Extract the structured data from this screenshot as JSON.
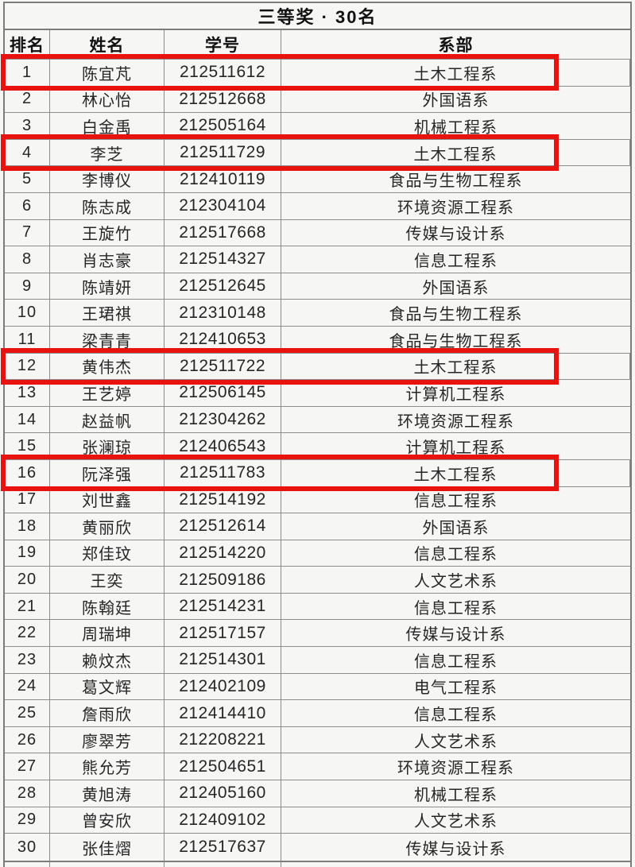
{
  "colors": {
    "highlight_border": "#e8130f"
  },
  "table": {
    "title": "三等奖 · 30名",
    "columns": [
      "排名",
      "姓名",
      "学号",
      "系部"
    ],
    "highlighted_ranks": [
      1,
      4,
      12,
      16
    ],
    "rows": [
      {
        "rank": "1",
        "name": "陈宜芃",
        "student_id": "212511612",
        "department": "土木工程系",
        "highlighted": true
      },
      {
        "rank": "2",
        "name": "林心怡",
        "student_id": "212512668",
        "department": "外国语系",
        "highlighted": false
      },
      {
        "rank": "3",
        "name": "白金禹",
        "student_id": "212505164",
        "department": "机械工程系",
        "highlighted": false
      },
      {
        "rank": "4",
        "name": "李芝",
        "student_id": "212511729",
        "department": "土木工程系",
        "highlighted": true
      },
      {
        "rank": "5",
        "name": "李博仪",
        "student_id": "212410119",
        "department": "食品与生物工程系",
        "highlighted": false
      },
      {
        "rank": "6",
        "name": "陈志成",
        "student_id": "212304104",
        "department": "环境资源工程系",
        "highlighted": false
      },
      {
        "rank": "7",
        "name": "王旋竹",
        "student_id": "212517668",
        "department": "传媒与设计系",
        "highlighted": false
      },
      {
        "rank": "8",
        "name": "肖志豪",
        "student_id": "212514327",
        "department": "信息工程系",
        "highlighted": false
      },
      {
        "rank": "9",
        "name": "陈靖妍",
        "student_id": "212512645",
        "department": "外国语系",
        "highlighted": false
      },
      {
        "rank": "10",
        "name": "王珺祺",
        "student_id": "212310148",
        "department": "食品与生物工程系",
        "highlighted": false
      },
      {
        "rank": "11",
        "name": "梁青青",
        "student_id": "212410653",
        "department": "食品与生物工程系",
        "highlighted": false
      },
      {
        "rank": "12",
        "name": "黄伟杰",
        "student_id": "212511722",
        "department": "土木工程系",
        "highlighted": true
      },
      {
        "rank": "13",
        "name": "王艺婷",
        "student_id": "212506145",
        "department": "计算机工程系",
        "highlighted": false
      },
      {
        "rank": "14",
        "name": "赵益帆",
        "student_id": "212304262",
        "department": "环境资源工程系",
        "highlighted": false
      },
      {
        "rank": "15",
        "name": "张澜琼",
        "student_id": "212406543",
        "department": "计算机工程系",
        "highlighted": false
      },
      {
        "rank": "16",
        "name": "阮泽强",
        "student_id": "212511783",
        "department": "土木工程系",
        "highlighted": true
      },
      {
        "rank": "17",
        "name": "刘世鑫",
        "student_id": "212514192",
        "department": "信息工程系",
        "highlighted": false
      },
      {
        "rank": "18",
        "name": "黄丽欣",
        "student_id": "212512614",
        "department": "外国语系",
        "highlighted": false
      },
      {
        "rank": "19",
        "name": "郑佳玟",
        "student_id": "212514220",
        "department": "信息工程系",
        "highlighted": false
      },
      {
        "rank": "20",
        "name": "王奕",
        "student_id": "212509186",
        "department": "人文艺术系",
        "highlighted": false
      },
      {
        "rank": "21",
        "name": "陈翰廷",
        "student_id": "212514231",
        "department": "信息工程系",
        "highlighted": false
      },
      {
        "rank": "22",
        "name": "周瑞坤",
        "student_id": "212517157",
        "department": "传媒与设计系",
        "highlighted": false
      },
      {
        "rank": "23",
        "name": "赖炆杰",
        "student_id": "212514301",
        "department": "信息工程系",
        "highlighted": false
      },
      {
        "rank": "24",
        "name": "葛文辉",
        "student_id": "212402109",
        "department": "电气工程系",
        "highlighted": false
      },
      {
        "rank": "25",
        "name": "詹雨欣",
        "student_id": "212414410",
        "department": "信息工程系",
        "highlighted": false
      },
      {
        "rank": "26",
        "name": "廖翠芳",
        "student_id": "212208221",
        "department": "人文艺术系",
        "highlighted": false
      },
      {
        "rank": "27",
        "name": "熊允芳",
        "student_id": "212504651",
        "department": "环境资源工程系",
        "highlighted": false
      },
      {
        "rank": "28",
        "name": "黄旭涛",
        "student_id": "212405160",
        "department": "机械工程系",
        "highlighted": false
      },
      {
        "rank": "29",
        "name": "曾安欣",
        "student_id": "212409102",
        "department": "人文艺术系",
        "highlighted": false
      },
      {
        "rank": "30",
        "name": "张佳熠",
        "student_id": "212517637",
        "department": "传媒与设计系",
        "highlighted": false
      }
    ]
  }
}
